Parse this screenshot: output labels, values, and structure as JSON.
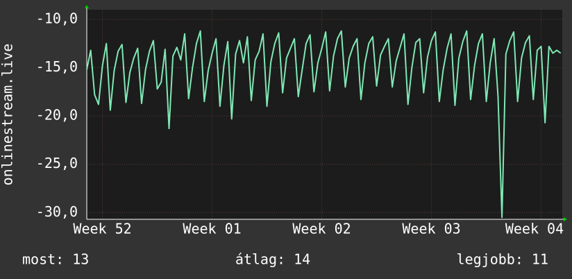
{
  "chart_data": {
    "type": "line",
    "y_label": "onlinestream.live",
    "x": [
      0,
      0.25,
      0.5,
      0.75,
      1,
      1.25,
      1.5,
      1.75,
      2,
      2.25,
      2.5,
      2.75,
      3,
      3.25,
      3.5,
      3.75,
      4,
      4.25,
      4.5,
      4.75,
      5,
      5.25,
      5.5,
      5.75,
      6,
      6.25,
      6.5,
      6.75,
      7,
      7.25,
      7.5,
      7.75,
      8,
      8.25,
      8.5,
      8.75,
      9,
      9.25,
      9.5,
      9.75,
      10,
      10.25,
      10.5,
      10.75,
      11,
      11.25,
      11.5,
      11.75,
      12,
      12.25,
      12.5,
      12.75,
      13,
      13.25,
      13.5,
      13.75,
      14,
      14.25,
      14.5,
      14.75,
      15,
      15.25,
      15.5,
      15.75,
      16,
      16.25,
      16.5,
      16.75,
      17,
      17.25,
      17.5,
      17.75,
      18,
      18.25,
      18.5,
      18.75,
      19,
      19.25,
      19.5,
      19.75,
      20,
      20.25,
      20.5,
      20.75,
      21,
      21.25,
      21.5,
      21.75,
      22,
      22.25,
      22.5,
      22.75,
      23,
      23.25,
      23.5,
      23.75,
      24,
      24.25,
      24.5,
      24.75,
      25,
      25.25,
      25.5,
      25.75,
      26,
      26.25,
      26.5,
      26.75,
      27,
      27.25,
      27.5,
      27.75,
      28,
      28.25,
      28.5,
      28.75,
      29,
      29.25,
      29.5,
      29.75,
      30,
      30.25
    ],
    "series": [
      {
        "color": "#7fe8b4",
        "values": [
          -15.2,
          -13.2,
          -17.8,
          -18.8,
          -14.8,
          -12.5,
          -19.4,
          -15.3,
          -13.3,
          -12.6,
          -18.6,
          -15.5,
          -14.0,
          -13.0,
          -18.7,
          -15.2,
          -13.3,
          -12.2,
          -17.2,
          -16.5,
          -13.1,
          -21.3,
          -13.8,
          -12.9,
          -14.2,
          -11.5,
          -18.2,
          -15.0,
          -12.5,
          -11.2,
          -18.5,
          -15.3,
          -13.5,
          -12.0,
          -19.0,
          -14.8,
          -12.3,
          -20.3,
          -13.6,
          -12.2,
          -14.5,
          -11.8,
          -18.4,
          -14.2,
          -13.3,
          -11.5,
          -19.0,
          -14.4,
          -12.5,
          -11.4,
          -17.6,
          -14.0,
          -13.0,
          -12.0,
          -18.0,
          -15.2,
          -12.5,
          -11.6,
          -17.5,
          -14.5,
          -13.0,
          -11.3,
          -17.4,
          -13.8,
          -12.0,
          -11.2,
          -17.0,
          -14.0,
          -12.8,
          -12.0,
          -18.3,
          -14.5,
          -12.5,
          -11.8,
          -16.9,
          -13.7,
          -12.8,
          -12.0,
          -17.0,
          -14.3,
          -12.9,
          -11.5,
          -18.8,
          -15.0,
          -12.4,
          -12.0,
          -17.6,
          -13.9,
          -12.2,
          -11.3,
          -18.5,
          -15.2,
          -13.0,
          -11.5,
          -18.9,
          -14.0,
          -12.3,
          -11.2,
          -18.3,
          -14.8,
          -12.5,
          -11.5,
          -18.5,
          -14.5,
          -12.0,
          -18.0,
          -30.5,
          -13.6,
          -12.2,
          -11.3,
          -18.5,
          -14.0,
          -12.4,
          -11.7,
          -18.3,
          -13.2,
          -12.8,
          -20.7,
          -12.8,
          -13.5,
          -13.2,
          -13.5
        ]
      }
    ],
    "xlim": [
      0,
      30.35
    ],
    "xticks": [
      {
        "value": 1,
        "label": "Week 52"
      },
      {
        "value": 8,
        "label": "Week 01"
      },
      {
        "value": 15,
        "label": "Week 02"
      },
      {
        "value": 22,
        "label": "Week 03"
      },
      {
        "value": 29,
        "label": "Week 04"
      }
    ],
    "ylim": [
      -30.7,
      -9
    ],
    "yticks": [
      {
        "value": -30,
        "label": "-30,0"
      },
      {
        "value": -25,
        "label": "-25,0"
      },
      {
        "value": -20,
        "label": "-20,0"
      },
      {
        "value": -15,
        "label": "-15,0"
      },
      {
        "value": -10,
        "label": "-10,0"
      }
    ],
    "grid": true,
    "stats": [
      "most: 13",
      "átlag: 14",
      "legjobb: 11"
    ]
  }
}
